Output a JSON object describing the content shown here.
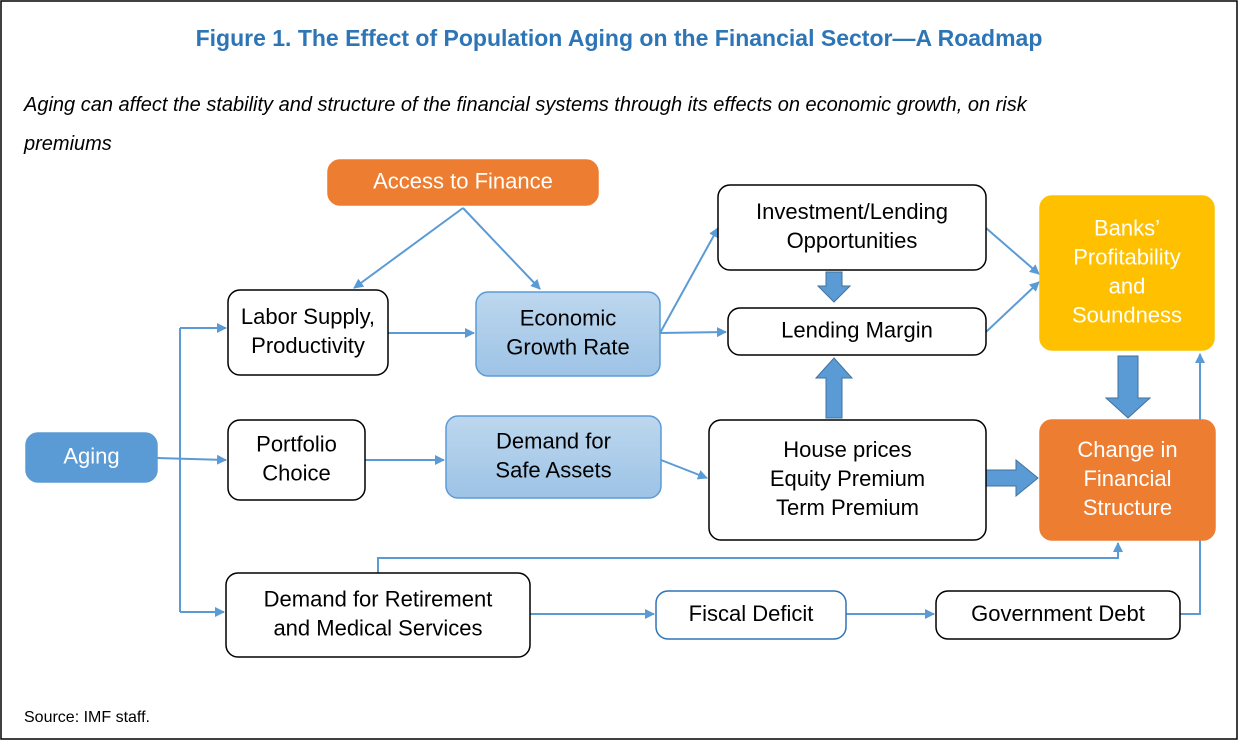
{
  "header": {
    "title": "Figure 1. The Effect of Population Aging on the Financial Sector—A Roadmap",
    "subtitle": [
      "Aging can affect the stability and structure of the financial systems through its effects on economic growth, on risk",
      "premiums"
    ]
  },
  "nodes": [
    {
      "lines": [
        "Access to Finance"
      ]
    },
    {
      "lines": [
        "Labor Supply,",
        "Productivity"
      ]
    },
    {
      "lines": [
        "Economic",
        "Growth Rate"
      ]
    },
    {
      "lines": [
        "Investment/Lending",
        "Opportunities"
      ]
    },
    {
      "lines": [
        "Lending Margin"
      ]
    },
    {
      "lines": [
        "Banks’",
        "Profitability",
        "and",
        "Soundness"
      ]
    },
    {
      "lines": [
        "Aging"
      ]
    },
    {
      "lines": [
        "Portfolio",
        "Choice"
      ]
    },
    {
      "lines": [
        "Demand for",
        "Safe Assets"
      ]
    },
    {
      "lines": [
        "House prices",
        "Equity Premium",
        "Term Premium"
      ]
    },
    {
      "lines": [
        "Change in",
        "Financial",
        "Structure"
      ]
    },
    {
      "lines": [
        "Demand for Retirement",
        "and Medical Services"
      ]
    },
    {
      "lines": [
        "Fiscal Deficit"
      ]
    },
    {
      "lines": [
        "Government Debt"
      ]
    }
  ],
  "footer": {
    "source": "Source: IMF staff."
  }
}
